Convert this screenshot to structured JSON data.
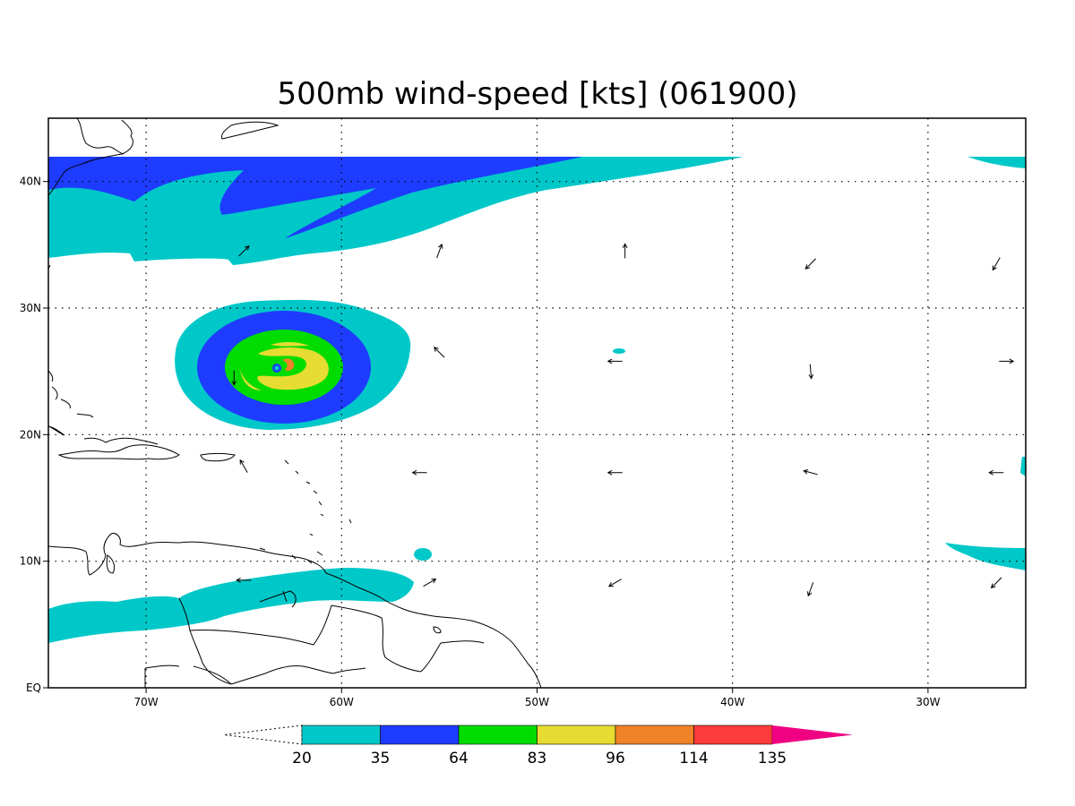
{
  "title": "500mb wind-speed [kts] (061900)",
  "map": {
    "lon_range": [
      -75,
      -25
    ],
    "lat_range": [
      0,
      45
    ],
    "lon_ticks": [
      {
        "lon": -70,
        "label": "70W"
      },
      {
        "lon": -60,
        "label": "60W"
      },
      {
        "lon": -50,
        "label": "50W"
      },
      {
        "lon": -40,
        "label": "40W"
      },
      {
        "lon": -30,
        "label": "30W"
      }
    ],
    "lat_ticks": [
      {
        "lat": 40,
        "label": "40N"
      },
      {
        "lat": 30,
        "label": "30N"
      },
      {
        "lat": 20,
        "label": "20N"
      },
      {
        "lat": 10,
        "label": "10N"
      },
      {
        "lat": 0,
        "label": "EQ"
      }
    ],
    "grid": true
  },
  "colorbar": {
    "levels": [
      "20",
      "35",
      "64",
      "83",
      "96",
      "114",
      "135"
    ],
    "colors": [
      "#00c8c8",
      "#1e3cff",
      "#00dc00",
      "#e6dc32",
      "#f08228",
      "#fa3c3c",
      "#f00082"
    ]
  },
  "wind_vectors": [
    {
      "lon": -65,
      "lat": 34.5,
      "dir": 45
    },
    {
      "lon": -55,
      "lat": 34.5,
      "dir": 20
    },
    {
      "lon": -45.5,
      "lat": 34.5,
      "dir": 0
    },
    {
      "lon": -36,
      "lat": 33.5,
      "dir": 225
    },
    {
      "lon": -26.5,
      "lat": 33.5,
      "dir": 210
    },
    {
      "lon": -65.5,
      "lat": 24.5,
      "dir": 180
    },
    {
      "lon": -55,
      "lat": 26.5,
      "dir": 315
    },
    {
      "lon": -46,
      "lat": 25.8,
      "dir": 270
    },
    {
      "lon": -36,
      "lat": 25,
      "dir": 175
    },
    {
      "lon": -26,
      "lat": 25.8,
      "dir": 90
    },
    {
      "lon": -65,
      "lat": 17.5,
      "dir": 330
    },
    {
      "lon": -56,
      "lat": 17,
      "dir": 270
    },
    {
      "lon": -46,
      "lat": 17,
      "dir": 270
    },
    {
      "lon": -36,
      "lat": 17,
      "dir": 285
    },
    {
      "lon": -26.5,
      "lat": 17,
      "dir": 270
    },
    {
      "lon": -65,
      "lat": 8.5,
      "dir": 270
    },
    {
      "lon": -55.5,
      "lat": 8.3,
      "dir": 60
    },
    {
      "lon": -46,
      "lat": 8.3,
      "dir": 240
    },
    {
      "lon": -36,
      "lat": 7.8,
      "dir": 200
    },
    {
      "lon": -26.5,
      "lat": 8.3,
      "dir": 225
    }
  ]
}
